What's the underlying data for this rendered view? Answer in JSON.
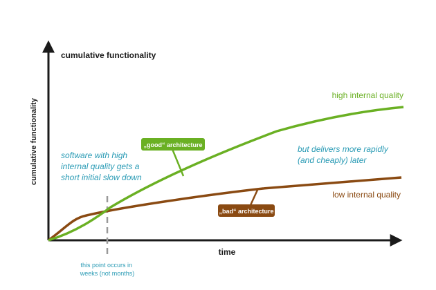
{
  "y_axis_title": "cumulative functionality",
  "y_axis_label": "cumulative functionality",
  "x_axis_label": "time",
  "series": [
    {
      "name": "high internal quality",
      "color": "#6ab023"
    },
    {
      "name": "low internal quality",
      "color": "#8a4a12"
    }
  ],
  "callouts": {
    "good": "„good“ architecture",
    "bad": "„bad“ architecture"
  },
  "notes": {
    "slowdown": [
      "software with high",
      "internal quality gets a",
      "short initial slow down"
    ],
    "rapid": [
      "but delivers more rapidly",
      "(and cheaply) later"
    ],
    "crossover": [
      "this point occurs in",
      "weeks (not months)"
    ]
  },
  "colors": {
    "axis": "#1a1a1a",
    "note_teal": "#2a9bb5",
    "marker_gray": "#999999"
  }
}
